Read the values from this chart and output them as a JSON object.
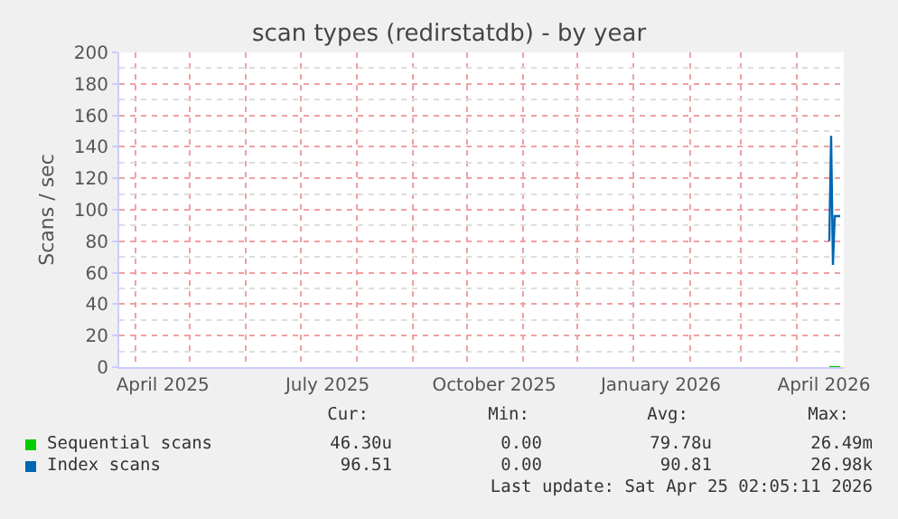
{
  "chart_data": {
    "type": "line",
    "title": "scan types (redirstatdb) - by year",
    "ylabel": "Scans / sec",
    "xlim": [
      "2025-03-23",
      "2026-04-27"
    ],
    "xticks": [
      {
        "value": "2025-04-16",
        "label": "April 2025"
      },
      {
        "value": "2025-07-16",
        "label": "July 2025"
      },
      {
        "value": "2025-10-16",
        "label": "October 2025"
      },
      {
        "value": "2026-01-16",
        "label": "January 2026"
      },
      {
        "value": "2026-04-16",
        "label": "April 2026"
      }
    ],
    "ylim": [
      0,
      200
    ],
    "yticks": [
      0,
      20,
      40,
      60,
      80,
      100,
      120,
      140,
      160,
      180,
      200
    ],
    "grid": true,
    "legend": "bottom",
    "series": [
      {
        "name": "Sequential scans",
        "color": "#00cc00",
        "x": [
          "2026-04-19",
          "2026-04-20",
          "2026-04-21",
          "2026-04-22",
          "2026-04-25"
        ],
        "values": [
          0,
          0,
          0,
          0,
          0
        ]
      },
      {
        "name": "Index scans",
        "color": "#0066b3",
        "x": [
          "2026-04-19",
          "2026-04-20",
          "2026-04-21",
          "2026-04-22",
          "2026-04-25"
        ],
        "values": [
          80,
          147,
          65,
          96,
          96
        ]
      }
    ],
    "annotations": [
      "Cur:",
      "Min:",
      "Avg:",
      "Max:",
      "46.30u",
      "0.00",
      "79.78u",
      "26.49m",
      "96.51",
      "0.00",
      "90.81",
      "26.98k",
      "Last update: Sat Apr 25 02:05:11 2026"
    ]
  }
}
